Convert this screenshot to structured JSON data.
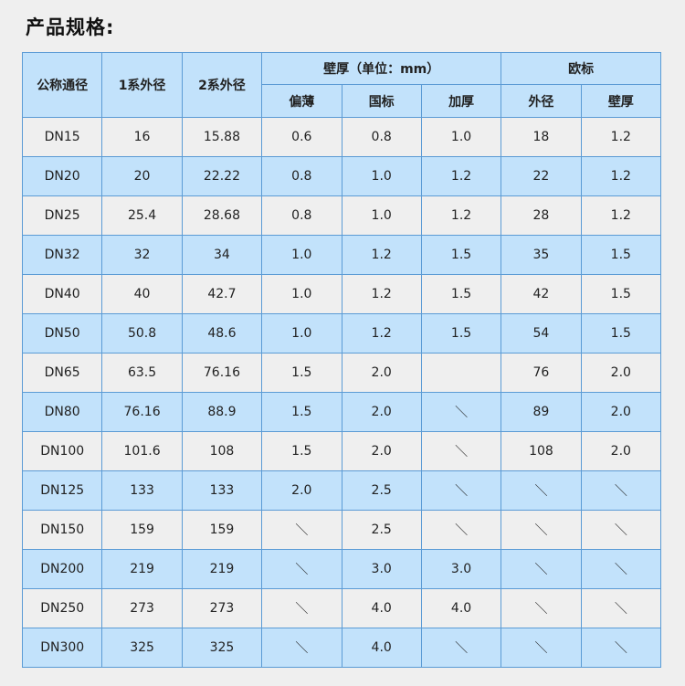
{
  "title": "产品规格:",
  "colors": {
    "header_bg": "#c2e2fb",
    "row_alt_bg": "#c2e2fb",
    "row_bg": "#efefef",
    "border": "#5b9bd5"
  },
  "header": {
    "nominal": "公称通径",
    "series1": "1系外径",
    "series2": "2系外径",
    "wall_group": "壁厚（单位：mm）",
    "wall_thin": "偏薄",
    "wall_national": "国标",
    "wall_thick": "加厚",
    "euro_group": "欧标",
    "euro_od": "外径",
    "euro_wall": "壁厚"
  },
  "rows": [
    [
      "DN15",
      "16",
      "15.88",
      "0.6",
      "0.8",
      "1.0",
      "18",
      "1.2"
    ],
    [
      "DN20",
      "20",
      "22.22",
      "0.8",
      "1.0",
      "1.2",
      "22",
      "1.2"
    ],
    [
      "DN25",
      "25.4",
      "28.68",
      "0.8",
      "1.0",
      "1.2",
      "28",
      "1.2"
    ],
    [
      "DN32",
      "32",
      "34",
      "1.0",
      "1.2",
      "1.5",
      "35",
      "1.5"
    ],
    [
      "DN40",
      "40",
      "42.7",
      "1.0",
      "1.2",
      "1.5",
      "42",
      "1.5"
    ],
    [
      "DN50",
      "50.8",
      "48.6",
      "1.0",
      "1.2",
      "1.5",
      "54",
      "1.5"
    ],
    [
      "DN65",
      "63.5",
      "76.16",
      "1.5",
      "2.0",
      "",
      "76",
      "2.0"
    ],
    [
      "DN80",
      "76.16",
      "88.9",
      "1.5",
      "2.0",
      "＼",
      "89",
      "2.0"
    ],
    [
      "DN100",
      "101.6",
      "108",
      "1.5",
      "2.0",
      "＼",
      "108",
      "2.0"
    ],
    [
      "DN125",
      "133",
      "133",
      "2.0",
      "2.5",
      "＼",
      "＼",
      "＼"
    ],
    [
      "DN150",
      "159",
      "159",
      "＼",
      "2.5",
      "＼",
      "＼",
      "＼"
    ],
    [
      "DN200",
      "219",
      "219",
      "＼",
      "3.0",
      "3.0",
      "＼",
      "＼"
    ],
    [
      "DN250",
      "273",
      "273",
      "＼",
      "4.0",
      "4.0",
      "＼",
      "＼"
    ],
    [
      "DN300",
      "325",
      "325",
      "＼",
      "4.0",
      "＼",
      "＼",
      "＼"
    ]
  ]
}
